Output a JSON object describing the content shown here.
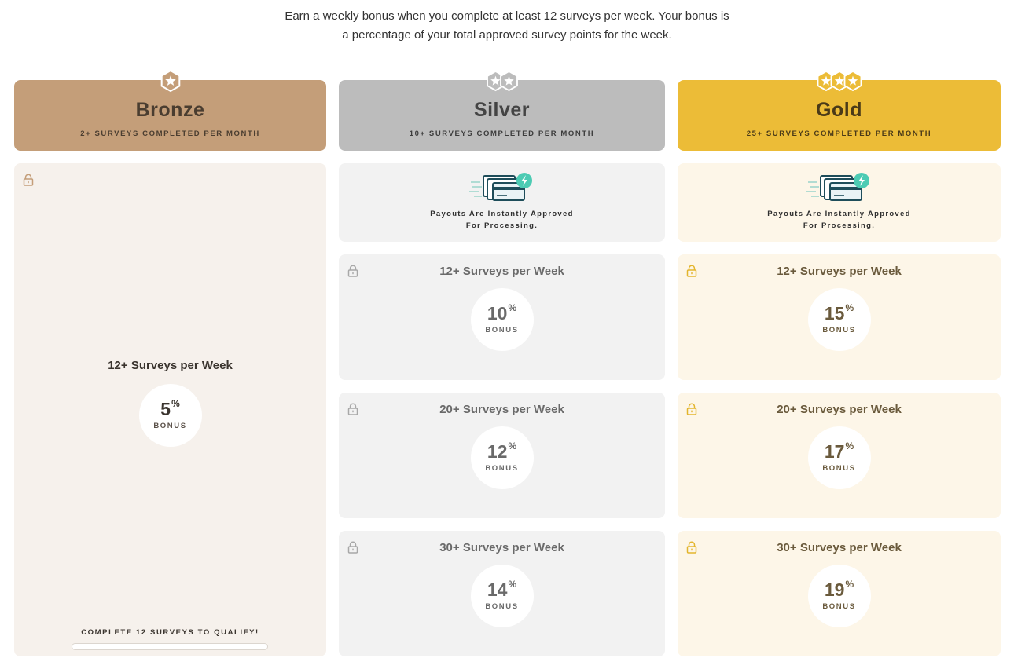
{
  "intro": {
    "line1": "Earn a weekly bonus when you complete at least 12 surveys per week. Your bonus is",
    "line2": "a percentage of your total approved survey points for the week."
  },
  "tiers": {
    "bronze": {
      "name": "Bronze",
      "requirement": "2+ SURVEYS COMPLETED PER MONTH",
      "color": "#c49e79",
      "stars": 1,
      "bonus": {
        "title": "12+ Surveys per Week",
        "value": "5",
        "unit": "%",
        "label": "BONUS"
      },
      "qualify_text": "COMPLETE 12 SURVEYS TO QUALIFY!",
      "progress": 0
    },
    "silver": {
      "name": "Silver",
      "requirement": "10+ SURVEYS COMPLETED PER MONTH",
      "color": "#bcbcbc",
      "stars": 2,
      "payout": {
        "line1": "Payouts Are Instantly Approved",
        "line2": "For Processing."
      },
      "bonuses": [
        {
          "title": "12+ Surveys per Week",
          "value": "10",
          "unit": "%",
          "label": "BONUS"
        },
        {
          "title": "20+ Surveys per Week",
          "value": "12",
          "unit": "%",
          "label": "BONUS"
        },
        {
          "title": "30+ Surveys per Week",
          "value": "14",
          "unit": "%",
          "label": "BONUS"
        }
      ]
    },
    "gold": {
      "name": "Gold",
      "requirement": "25+ SURVEYS COMPLETED PER MONTH",
      "color": "#ecbc37",
      "stars": 3,
      "payout": {
        "line1": "Payouts Are Instantly Approved",
        "line2": "For Processing."
      },
      "bonuses": [
        {
          "title": "12+ Surveys per Week",
          "value": "15",
          "unit": "%",
          "label": "BONUS"
        },
        {
          "title": "20+ Surveys per Week",
          "value": "17",
          "unit": "%",
          "label": "BONUS"
        },
        {
          "title": "30+ Surveys per Week",
          "value": "19",
          "unit": "%",
          "label": "BONUS"
        }
      ]
    }
  },
  "icons": {
    "lock": "lock-icon",
    "star_badge": "star-badge-icon",
    "payout": "instant-payout-card-icon"
  }
}
